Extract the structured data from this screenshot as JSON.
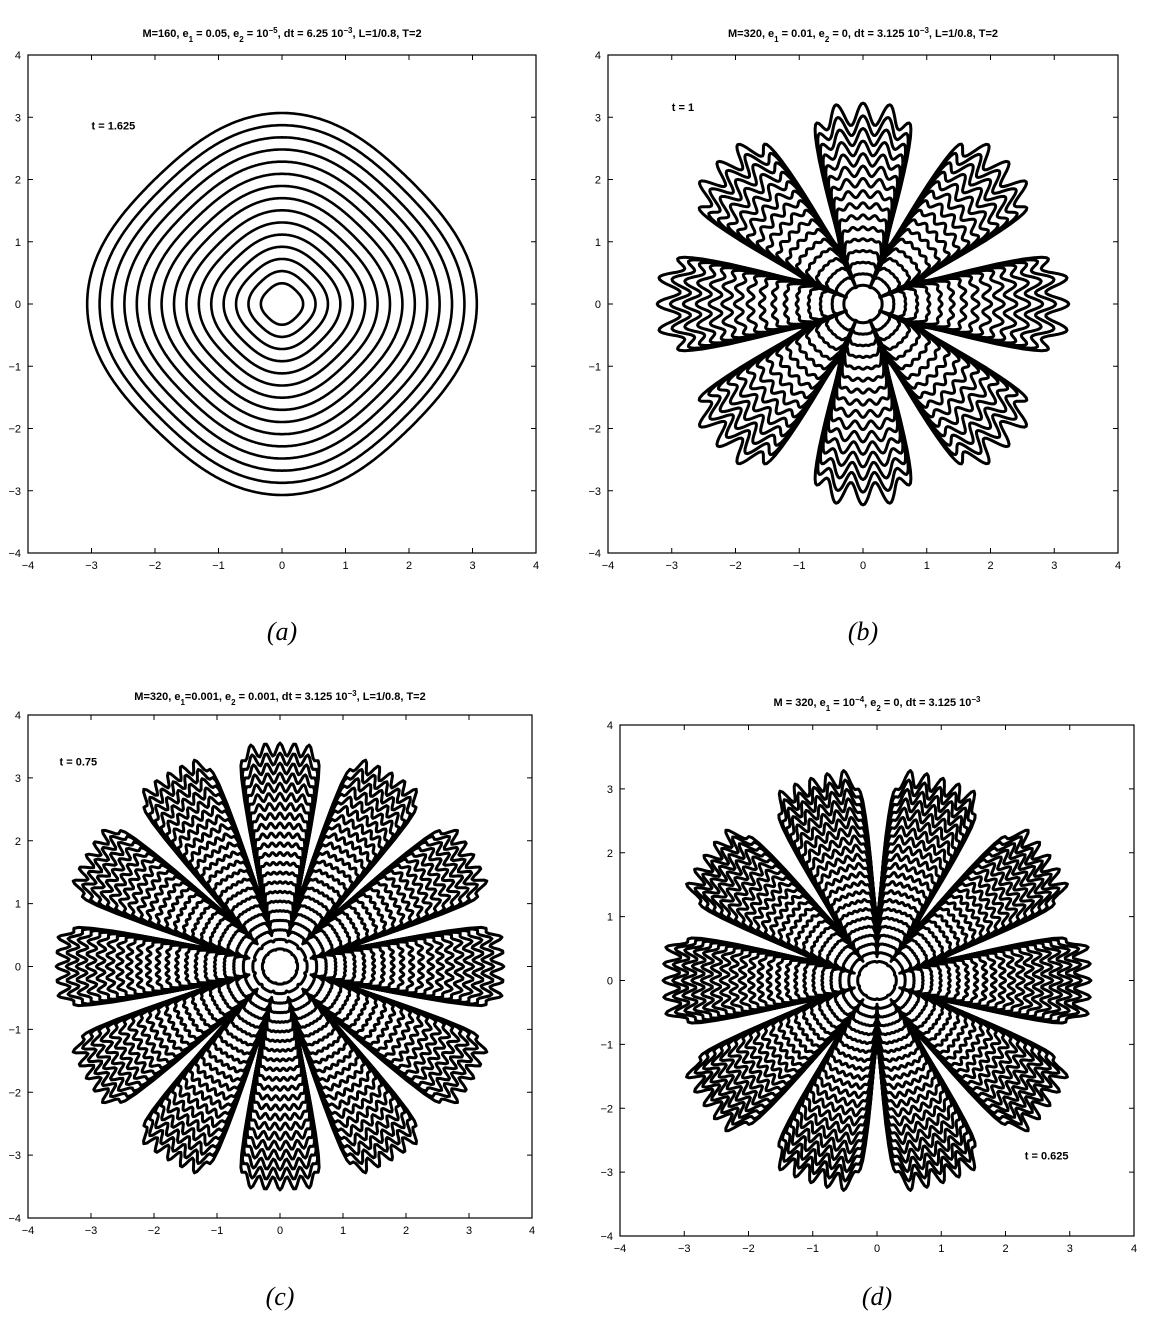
{
  "chart_data": [
    {
      "type": "line",
      "id": "a",
      "caption": "(a)",
      "title": "M=160, e1 = 0.05, e2 = 10^-5, dt = 6.25 10^-3, L=1/0.8, T=2",
      "title_parts": [
        "M=160, e",
        "1",
        " = 0.05, e",
        "2",
        " = 10",
        "−5",
        ", dt = 6.25 10",
        "−3",
        ", L=1/0.8, T=2"
      ],
      "annotation": "t = 1.625",
      "annotation_pos": [
        -3,
        2.8
      ],
      "xlim": [
        -4,
        4
      ],
      "ylim": [
        -4,
        4
      ],
      "xticks": [
        -4,
        -3,
        -2,
        -1,
        0,
        1,
        2,
        3,
        4
      ],
      "yticks": [
        -4,
        -3,
        -2,
        -1,
        0,
        1,
        2,
        3,
        4
      ],
      "xlabel": "",
      "ylabel": "",
      "grid": false,
      "shape": {
        "kind": "rings",
        "count": 15,
        "r_min": 0.32,
        "r_max": 2.95,
        "folds": 4,
        "amp": 0.04
      }
    },
    {
      "type": "line",
      "id": "b",
      "caption": "(b)",
      "title": "M=320, e1 = 0.01, e2 = 0, dt = 3.125 10^-3, L=1/0.8, T=2",
      "title_parts": [
        "M=320, e",
        "1",
        " = 0.01, e",
        "2",
        " = 0, dt = 3.125 10",
        "−3",
        ", L=1/0.8, T=2"
      ],
      "annotation": "t = 1",
      "annotation_pos": [
        -3,
        3.1
      ],
      "xlim": [
        -4,
        4
      ],
      "ylim": [
        -4,
        4
      ],
      "xticks": [
        -4,
        -3,
        -2,
        -1,
        0,
        1,
        2,
        3,
        4
      ],
      "yticks": [
        -4,
        -3,
        -2,
        -1,
        0,
        1,
        2,
        3,
        4
      ],
      "xlabel": "",
      "ylabel": "",
      "grid": false,
      "shape": {
        "kind": "dendrite",
        "count": 16,
        "r_min": 0.3,
        "r_max": 3.05,
        "arms": 8,
        "offset_deg": 22.5,
        "gap": 0.22,
        "lobes": 3
      }
    },
    {
      "type": "line",
      "id": "c",
      "caption": "(c)",
      "title": "M=320, e1=0.001, e2 = 0.001, dt = 3.125 10^-3, L=1/0.8, T=2",
      "title_parts": [
        "M=320, e",
        "1",
        "=0.001, e",
        "2",
        " = 0.001, dt = 3.125 10",
        "−3",
        ", L=1/0.8, T=2"
      ],
      "annotation": "t = 0.75",
      "annotation_pos": [
        -3.5,
        3.2
      ],
      "xlim": [
        -4,
        4
      ],
      "ylim": [
        -4,
        4
      ],
      "xticks": [
        -4,
        -3,
        -2,
        -1,
        0,
        1,
        2,
        3,
        4
      ],
      "yticks": [
        -4,
        -3,
        -2,
        -1,
        0,
        1,
        2,
        3,
        4
      ],
      "xlabel": "",
      "ylabel": "",
      "grid": false,
      "shape": {
        "kind": "dendrite",
        "count": 22,
        "r_min": 0.28,
        "r_max": 3.45,
        "arms": 12,
        "offset_deg": 15,
        "gap": 0.16,
        "lobes": 4
      }
    },
    {
      "type": "line",
      "id": "d",
      "caption": "(d)",
      "title": "M = 320, e1 = 10^-4, e2 = 0, dt = 3.125 10^-3",
      "title_parts": [
        "M = 320, e",
        "1",
        " = 10",
        "−4",
        ", e",
        "2",
        " = 0, dt = 3.125 10",
        "−3",
        ""
      ],
      "annotation": "t = 0.625",
      "annotation_pos": [
        2.3,
        -2.8
      ],
      "xlim": [
        -4,
        4
      ],
      "ylim": [
        -4,
        4
      ],
      "xticks": [
        -4,
        -3,
        -2,
        -1,
        0,
        1,
        2,
        3,
        4
      ],
      "yticks": [
        -4,
        -3,
        -2,
        -1,
        0,
        1,
        2,
        3,
        4
      ],
      "xlabel": "",
      "ylabel": "",
      "grid": false,
      "shape": {
        "kind": "dendrite",
        "count": 22,
        "r_min": 0.3,
        "r_max": 3.2,
        "arms": 10,
        "offset_deg": 18,
        "gap": 0.18,
        "lobes": 4
      }
    }
  ]
}
